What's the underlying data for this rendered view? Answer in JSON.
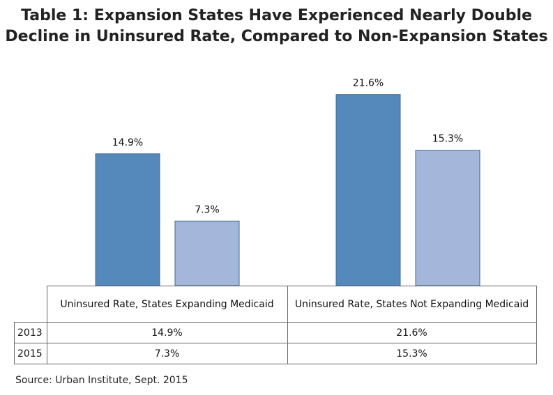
{
  "title_lines": [
    "Table 1: Expansion States Have Experienced Nearly Double",
    "Decline in Uninsured Rate, Compared to Non-Expansion States"
  ],
  "source": "Source: Urban Institute, Sept. 2015",
  "colors": {
    "series_2013": "#5589bb",
    "series_2015": "#a4b7da",
    "bar_stroke": "#3e6a95"
  },
  "table": {
    "headers": [
      "Uninsured Rate, States Expanding Medicaid",
      "Uninsured Rate, States Not Expanding Medicaid"
    ],
    "rows": [
      {
        "label": "2013",
        "cells": [
          "14.9%",
          "21.6%"
        ]
      },
      {
        "label": "2015",
        "cells": [
          "7.3%",
          "15.3%"
        ]
      }
    ]
  },
  "chart_data": {
    "type": "bar",
    "categories": [
      "Uninsured Rate, States Expanding Medicaid",
      "Uninsured Rate, States Not Expanding Medicaid"
    ],
    "series": [
      {
        "name": "2013",
        "values": [
          14.9,
          21.6
        ],
        "labels": [
          "14.9%",
          "21.6%"
        ]
      },
      {
        "name": "2015",
        "values": [
          7.3,
          15.3
        ],
        "labels": [
          "7.3%",
          "15.3%"
        ]
      }
    ],
    "ylim": [
      0,
      25
    ],
    "grid": false,
    "legend": "data table below chart"
  }
}
